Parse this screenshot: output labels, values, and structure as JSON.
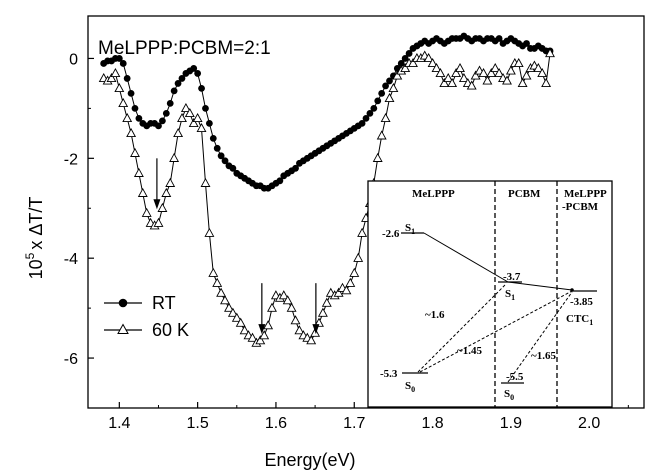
{
  "chart_data": {
    "type": "scatter",
    "annotation_title": "MeLPPP:PCBM=2:1",
    "xlabel": "Energy(eV)",
    "ylabel_prefix": "10",
    "ylabel_exp": "5",
    "ylabel_suffix": "x ΔT/T",
    "xlim": [
      1.36,
      2.07
    ],
    "ylim": [
      -7.0,
      0.85
    ],
    "xticks": [
      1.4,
      1.5,
      1.6,
      1.7,
      1.8,
      1.9,
      2.0
    ],
    "xtick_labels": [
      "1.4",
      "1.5",
      "1.6",
      "1.7",
      "1.8",
      "1.9",
      "2.0"
    ],
    "yticks": [
      0,
      -2,
      -4,
      -6
    ],
    "ytick_labels": [
      "0",
      "-2",
      "-4",
      "-6"
    ],
    "legend": {
      "placement": "bottom-left",
      "entries": [
        "RT",
        "60 K"
      ]
    },
    "series": [
      {
        "name": "RT",
        "marker": "filled-circle",
        "x": [
          1.38,
          1.385,
          1.39,
          1.395,
          1.4,
          1.405,
          1.41,
          1.415,
          1.42,
          1.425,
          1.43,
          1.435,
          1.44,
          1.445,
          1.45,
          1.455,
          1.46,
          1.465,
          1.47,
          1.475,
          1.48,
          1.485,
          1.49,
          1.495,
          1.5,
          1.505,
          1.51,
          1.515,
          1.52,
          1.525,
          1.53,
          1.535,
          1.54,
          1.545,
          1.55,
          1.555,
          1.56,
          1.565,
          1.57,
          1.575,
          1.58,
          1.585,
          1.59,
          1.595,
          1.6,
          1.605,
          1.61,
          1.615,
          1.62,
          1.625,
          1.63,
          1.635,
          1.64,
          1.645,
          1.65,
          1.655,
          1.66,
          1.665,
          1.67,
          1.675,
          1.68,
          1.685,
          1.69,
          1.695,
          1.7,
          1.705,
          1.71,
          1.715,
          1.72,
          1.725,
          1.73,
          1.735,
          1.74,
          1.745,
          1.75,
          1.755,
          1.76,
          1.765,
          1.77,
          1.775,
          1.78,
          1.785,
          1.79,
          1.795,
          1.8,
          1.805,
          1.81,
          1.815,
          1.82,
          1.825,
          1.83,
          1.835,
          1.84,
          1.845,
          1.85,
          1.855,
          1.86,
          1.865,
          1.87,
          1.875,
          1.88,
          1.885,
          1.89,
          1.895,
          1.9,
          1.905,
          1.91,
          1.915,
          1.92,
          1.925,
          1.93,
          1.935,
          1.94,
          1.945,
          1.95
        ],
        "y": [
          -0.1,
          -0.05,
          -0.05,
          0.0,
          0.0,
          -0.1,
          -0.4,
          -0.7,
          -1.0,
          -1.2,
          -1.3,
          -1.35,
          -1.3,
          -1.3,
          -1.35,
          -1.25,
          -1.1,
          -0.9,
          -0.65,
          -0.5,
          -0.4,
          -0.3,
          -0.25,
          -0.2,
          -0.3,
          -0.6,
          -1.0,
          -1.3,
          -1.6,
          -1.8,
          -1.95,
          -2.05,
          -2.15,
          -2.2,
          -2.3,
          -2.35,
          -2.4,
          -2.45,
          -2.5,
          -2.55,
          -2.55,
          -2.6,
          -2.6,
          -2.55,
          -2.5,
          -2.45,
          -2.35,
          -2.3,
          -2.25,
          -2.2,
          -2.1,
          -2.05,
          -2.0,
          -1.95,
          -1.9,
          -1.85,
          -1.8,
          -1.75,
          -1.7,
          -1.65,
          -1.6,
          -1.55,
          -1.5,
          -1.45,
          -1.4,
          -1.35,
          -1.3,
          -1.2,
          -1.1,
          -1.0,
          -0.85,
          -0.7,
          -0.55,
          -0.45,
          -0.35,
          -0.2,
          -0.1,
          0.0,
          0.1,
          0.2,
          0.25,
          0.3,
          0.35,
          0.3,
          0.35,
          0.4,
          0.35,
          0.3,
          0.35,
          0.4,
          0.4,
          0.4,
          0.45,
          0.4,
          0.35,
          0.4,
          0.4,
          0.35,
          0.4,
          0.4,
          0.35,
          0.4,
          0.3,
          0.35,
          0.4,
          0.35,
          0.3,
          0.25,
          0.3,
          0.2,
          0.2,
          0.25,
          0.2,
          0.15,
          0.15
        ]
      },
      {
        "name": "60 K",
        "marker": "open-triangle",
        "x": [
          1.38,
          1.385,
          1.39,
          1.395,
          1.4,
          1.405,
          1.41,
          1.415,
          1.42,
          1.425,
          1.43,
          1.435,
          1.44,
          1.445,
          1.45,
          1.455,
          1.46,
          1.465,
          1.47,
          1.475,
          1.48,
          1.485,
          1.49,
          1.495,
          1.5,
          1.505,
          1.51,
          1.515,
          1.52,
          1.525,
          1.53,
          1.535,
          1.54,
          1.545,
          1.55,
          1.555,
          1.56,
          1.565,
          1.57,
          1.575,
          1.58,
          1.585,
          1.59,
          1.595,
          1.6,
          1.605,
          1.61,
          1.615,
          1.62,
          1.625,
          1.63,
          1.635,
          1.64,
          1.645,
          1.65,
          1.655,
          1.66,
          1.665,
          1.67,
          1.675,
          1.68,
          1.685,
          1.69,
          1.695,
          1.7,
          1.705,
          1.71,
          1.715,
          1.72,
          1.725,
          1.73,
          1.735,
          1.74,
          1.745,
          1.75,
          1.755,
          1.76,
          1.765,
          1.77,
          1.775,
          1.78,
          1.785,
          1.79,
          1.795,
          1.8,
          1.805,
          1.81,
          1.815,
          1.82,
          1.825,
          1.83,
          1.835,
          1.84,
          1.845,
          1.85,
          1.855,
          1.86,
          1.865,
          1.87,
          1.875,
          1.88,
          1.885,
          1.89,
          1.895,
          1.9,
          1.905,
          1.91,
          1.915,
          1.92,
          1.925,
          1.93,
          1.935,
          1.94,
          1.945,
          1.95
        ],
        "y": [
          -0.4,
          -0.45,
          -0.4,
          -0.3,
          -0.6,
          -0.9,
          -1.2,
          -1.5,
          -1.9,
          -2.3,
          -2.7,
          -3.1,
          -3.3,
          -3.35,
          -3.3,
          -3.0,
          -2.7,
          -2.5,
          -2.0,
          -1.5,
          -1.2,
          -1.0,
          -1.1,
          -1.3,
          -1.2,
          -1.4,
          -2.5,
          -3.5,
          -4.3,
          -4.5,
          -4.7,
          -4.85,
          -5.0,
          -5.1,
          -5.2,
          -5.3,
          -5.45,
          -5.55,
          -5.6,
          -5.7,
          -5.65,
          -5.55,
          -5.35,
          -5.0,
          -4.75,
          -4.8,
          -4.75,
          -4.85,
          -5.0,
          -5.25,
          -5.45,
          -5.55,
          -5.6,
          -5.65,
          -5.5,
          -5.3,
          -5.1,
          -4.9,
          -4.7,
          -4.75,
          -4.7,
          -4.6,
          -4.65,
          -4.5,
          -4.3,
          -4.0,
          -3.5,
          -3.2,
          -2.9,
          -2.5,
          -2.0,
          -1.55,
          -1.2,
          -0.8,
          -0.6,
          -0.35,
          -0.25,
          -0.2,
          -0.1,
          -0.1,
          0.0,
          0.0,
          0.05,
          0.0,
          -0.1,
          -0.2,
          -0.3,
          -0.5,
          -0.4,
          -0.5,
          -0.3,
          -0.2,
          -0.4,
          -0.5,
          -0.55,
          -0.35,
          -0.25,
          -0.3,
          -0.45,
          -0.3,
          -0.2,
          -0.3,
          -0.4,
          -0.45,
          -0.25,
          -0.1,
          -0.1,
          -0.5,
          -0.35,
          -0.2,
          -0.15,
          -0.2,
          -0.3,
          -0.5,
          0.1
        ]
      }
    ],
    "arrows": [
      {
        "x": 1.448,
        "y_from": -2.0,
        "y_to": -3.0
      },
      {
        "x": 1.582,
        "y_from": -4.5,
        "y_to": -5.5
      },
      {
        "x": 1.651,
        "y_from": -4.5,
        "y_to": -5.5
      }
    ],
    "inset": {
      "columns": [
        "MeLPPP",
        "PCBM",
        "MeLPPP",
        "-PCBM"
      ],
      "levels": [
        {
          "value": "-2.6",
          "state": "S",
          "sub": "1"
        },
        {
          "value": "-3.7",
          "state": "S",
          "sub": "1"
        },
        {
          "value": "-3.85",
          "state": "CTC",
          "sub": "1"
        },
        {
          "value": "-5.3",
          "state": "S",
          "sub": "0"
        },
        {
          "value": "-5.5",
          "state": "S",
          "sub": "0"
        }
      ],
      "gaps": [
        "~1.6",
        "~1.45",
        "~1.65"
      ]
    }
  }
}
